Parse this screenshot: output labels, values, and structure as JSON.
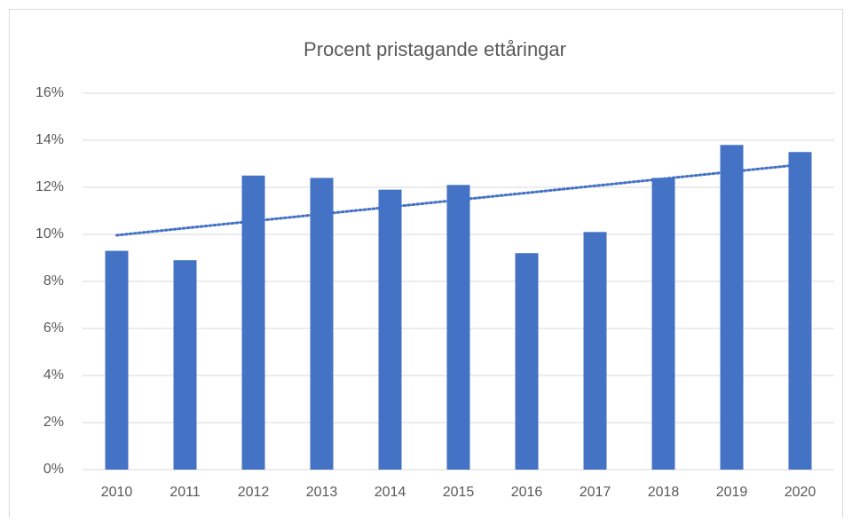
{
  "chart_data": {
    "type": "bar",
    "title": "Procent pristagande ettåringar",
    "categories": [
      "2010",
      "2011",
      "2012",
      "2013",
      "2014",
      "2015",
      "2016",
      "2017",
      "2018",
      "2019",
      "2020"
    ],
    "values": [
      9.3,
      8.9,
      12.5,
      12.4,
      11.9,
      12.1,
      9.2,
      10.1,
      12.4,
      13.8,
      13.5
    ],
    "color": "#4472c4",
    "trendline": "linear",
    "ylim": [
      0,
      16
    ],
    "yticks": [
      {
        "value": 0,
        "label": "0%"
      },
      {
        "value": 2,
        "label": "2%"
      },
      {
        "value": 4,
        "label": "4%"
      },
      {
        "value": 6,
        "label": "6%"
      },
      {
        "value": 8,
        "label": "8%"
      },
      {
        "value": 10,
        "label": "10%"
      },
      {
        "value": 12,
        "label": "12%"
      },
      {
        "value": 14,
        "label": "14%"
      },
      {
        "value": 16,
        "label": "16%"
      }
    ],
    "grid": true
  }
}
